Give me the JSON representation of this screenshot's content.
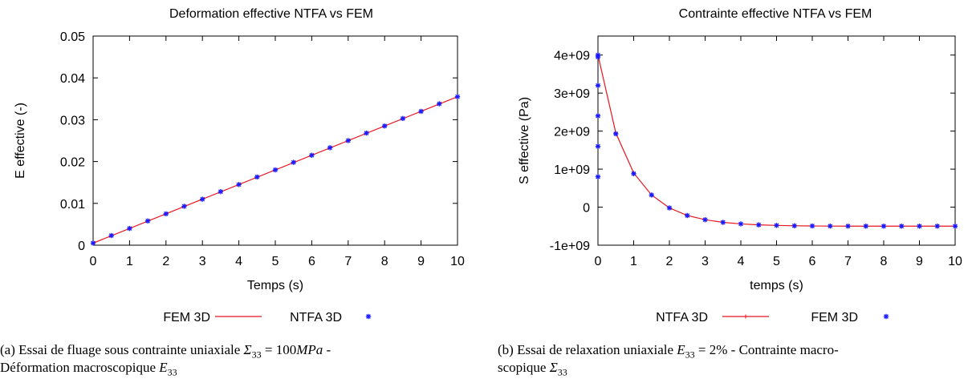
{
  "chart_data": [
    {
      "type": "line",
      "title": "Deformation effective NTFA vs FEM",
      "xlabel": "Temps (s)",
      "ylabel": "E effective (-)",
      "xlim": [
        0,
        10
      ],
      "ylim": [
        0,
        0.05
      ],
      "xticks": [
        "0",
        "1",
        "2",
        "3",
        "4",
        "5",
        "6",
        "7",
        "8",
        "9",
        "10"
      ],
      "yticks": [
        "0",
        "0.01",
        "0.02",
        "0.03",
        "0.04",
        "0.05"
      ],
      "grid": false,
      "legend_position": "bottom",
      "legend": [
        {
          "name": "FEM 3D",
          "color": "#e8141e",
          "style": "line"
        },
        {
          "name": "NTFA 3D",
          "color": "#1a1aff",
          "style": "star"
        }
      ],
      "series": [
        {
          "name": "FEM 3D",
          "style": "line",
          "color": "#e8141e",
          "x": [
            0,
            10
          ],
          "y": [
            0.0005,
            0.0355
          ]
        },
        {
          "name": "NTFA 3D",
          "style": "star",
          "color": "#1a1aff",
          "x": [
            0,
            0.5,
            1,
            1.5,
            2,
            2.5,
            3,
            3.5,
            4,
            4.5,
            5,
            5.5,
            6,
            6.5,
            7,
            7.5,
            8,
            8.5,
            9,
            9.5,
            10
          ],
          "y": [
            0.0005,
            0.0023,
            0.004,
            0.0058,
            0.0075,
            0.0093,
            0.011,
            0.0128,
            0.0145,
            0.0163,
            0.018,
            0.0198,
            0.0215,
            0.0233,
            0.025,
            0.0268,
            0.0285,
            0.0303,
            0.032,
            0.0338,
            0.0355
          ]
        }
      ]
    },
    {
      "type": "line",
      "title": "Contrainte effective NTFA vs FEM",
      "xlabel": "temps (s)",
      "ylabel": "S effective (Pa)",
      "xlim": [
        0,
        10
      ],
      "ylim": [
        -1000000000,
        4500000000
      ],
      "xticks": [
        "0",
        "1",
        "2",
        "3",
        "4",
        "5",
        "6",
        "7",
        "8",
        "9",
        "10"
      ],
      "yticks": [
        "-1e+09",
        "0",
        "1e+09",
        "2e+09",
        "3e+09",
        "4e+09"
      ],
      "grid": false,
      "legend_position": "bottom",
      "legend": [
        {
          "name": "NTFA 3D",
          "color": "#e8141e",
          "style": "line-plus"
        },
        {
          "name": "FEM 3D",
          "color": "#1a1aff",
          "style": "star"
        }
      ],
      "series": [
        {
          "name": "NTFA 3D",
          "style": "line-plus",
          "color": "#e8141e",
          "x": [
            0,
            0.5,
            1,
            1.5,
            2,
            2.5,
            3,
            3.5,
            4,
            4.5,
            5,
            5.5,
            6,
            6.5,
            7,
            7.5,
            8,
            8.5,
            9,
            9.5,
            10
          ],
          "y": [
            4000000000,
            1950000000,
            900000000,
            320000000,
            -20000000,
            -220000000,
            -330000000,
            -400000000,
            -440000000,
            -465000000,
            -480000000,
            -490000000,
            -495000000,
            -498000000,
            -500000000,
            -500000000,
            -500000000,
            -500000000,
            -500000000,
            -500000000,
            -500000000
          ]
        },
        {
          "name": "FEM 3D",
          "style": "star",
          "color": "#1a1aff",
          "x": [
            0,
            0,
            0,
            0,
            0,
            0,
            0.5,
            1,
            1.5,
            2,
            2.5,
            3,
            3.5,
            4,
            4.5,
            5,
            5.5,
            6,
            6.5,
            7,
            7.5,
            8,
            8.5,
            9,
            9.5,
            10
          ],
          "y": [
            800000000,
            1600000000,
            2400000000,
            3200000000,
            3950000000,
            4000000000,
            1930000000,
            880000000,
            320000000,
            -20000000,
            -220000000,
            -330000000,
            -400000000,
            -440000000,
            -465000000,
            -480000000,
            -490000000,
            -495000000,
            -498000000,
            -500000000,
            -500000000,
            -500000000,
            -500000000,
            -500000000,
            -500000000,
            -500000000
          ]
        }
      ]
    }
  ],
  "captions": {
    "a": {
      "line1_prefix": "(a)  Essai de fluage sous contrainte uniaxiale ",
      "line1_math": "Σ",
      "line1_sub": "33",
      "line1_mid": " = 100",
      "line1_unit": "MPa",
      "line1_suffix": " -",
      "line2_prefix": "Déformation macroscopique ",
      "line2_math": "E",
      "line2_sub": "33"
    },
    "b": {
      "line1_prefix": "(b)  Essai de relaxation uniaxiale ",
      "line1_math": "E",
      "line1_sub": "33",
      "line1_suffix": " = 2% - Contrainte macro-",
      "line2_prefix": "scopique ",
      "line2_math": "Σ",
      "line2_sub": "33"
    }
  }
}
